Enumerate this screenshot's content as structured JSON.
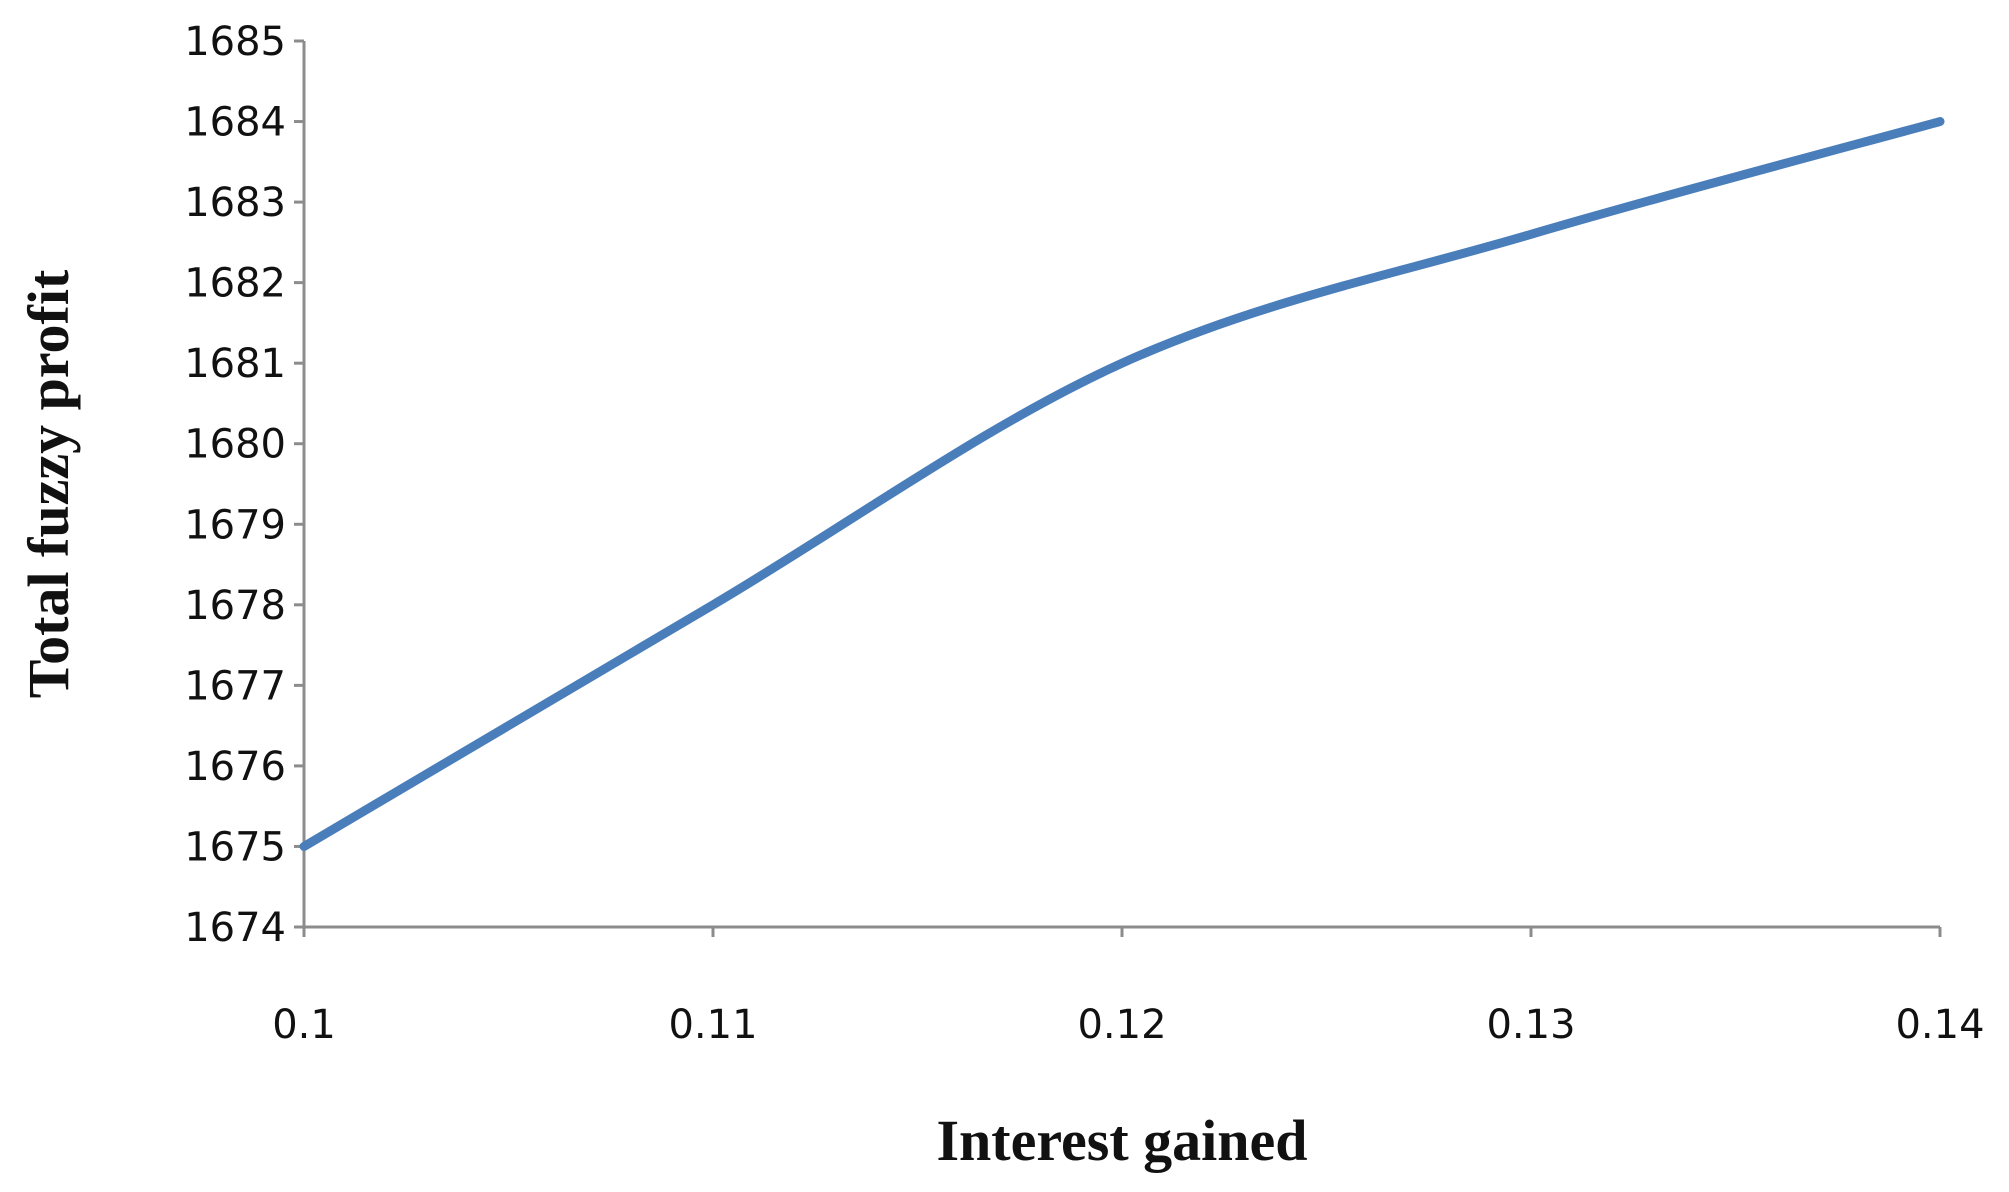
{
  "chart_data": {
    "type": "line",
    "title": "",
    "xlabel": "Interest gained",
    "ylabel": "Total fuzzy profit",
    "x": [
      0.1,
      0.11,
      0.12,
      0.13,
      0.14
    ],
    "series": [
      {
        "values": [
          1675,
          1678,
          1681,
          1682.6,
          1684
        ],
        "color": "#4a7ebb",
        "smooth": true
      }
    ],
    "xlim": [
      0.1,
      0.14
    ],
    "ylim": [
      1674,
      1685
    ],
    "x_ticks": [
      "0.1",
      "0.11",
      "0.12",
      "0.13",
      "0.14"
    ],
    "y_ticks": [
      "1674",
      "1675",
      "1676",
      "1677",
      "1678",
      "1679",
      "1680",
      "1681",
      "1682",
      "1683",
      "1684",
      "1685"
    ],
    "grid": false,
    "legend": "none",
    "axis_color": "#8c8c8c"
  }
}
